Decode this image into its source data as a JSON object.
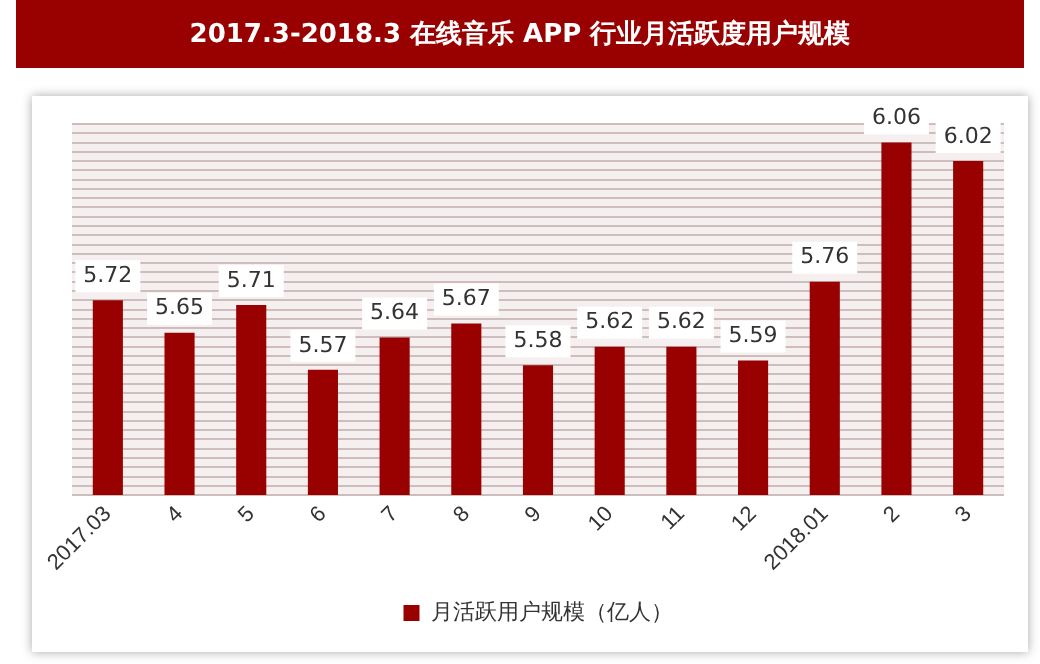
{
  "chart_data": {
    "type": "bar",
    "title": "2017.3-2018.3 在线音乐 APP 行业月活跃度用户规模",
    "categories": [
      "2017.03",
      "4",
      "5",
      "6",
      "7",
      "8",
      "9",
      "10",
      "11",
      "12",
      "2018.01",
      "2",
      "3"
    ],
    "series": [
      {
        "name": "月活跃用户规模（亿人）",
        "color": "#990000",
        "values": [
          5.72,
          5.65,
          5.71,
          5.57,
          5.64,
          5.67,
          5.58,
          5.62,
          5.62,
          5.59,
          5.76,
          6.06,
          6.02
        ]
      }
    ],
    "ylim": [
      5.3,
      6.1
    ],
    "yticks": [
      {
        "value": 5.3,
        "label": null
      },
      {
        "value": 5.32,
        "label": null
      },
      {
        "value": 5.34,
        "label": null
      },
      {
        "value": 5.36,
        "label": null
      },
      {
        "value": 5.38,
        "label": null
      },
      {
        "value": 5.4,
        "label": null
      },
      {
        "value": 5.42,
        "label": null
      },
      {
        "value": 5.44,
        "label": null
      },
      {
        "value": 5.46,
        "label": null
      },
      {
        "value": 5.48,
        "label": null
      },
      {
        "value": 5.5,
        "label": null
      },
      {
        "value": 5.52,
        "label": null
      },
      {
        "value": 5.54,
        "label": null
      },
      {
        "value": 5.56,
        "label": null
      },
      {
        "value": 5.58,
        "label": null
      },
      {
        "value": 5.6,
        "label": null
      },
      {
        "value": 5.62,
        "label": null
      },
      {
        "value": 5.64,
        "label": null
      },
      {
        "value": 5.66,
        "label": null
      },
      {
        "value": 5.68,
        "label": null
      },
      {
        "value": 5.7,
        "label": null
      },
      {
        "value": 5.72,
        "label": null
      },
      {
        "value": 5.74,
        "label": null
      },
      {
        "value": 5.76,
        "label": null
      },
      {
        "value": 5.78,
        "label": null
      },
      {
        "value": 5.8,
        "label": null
      },
      {
        "value": 5.82,
        "label": null
      },
      {
        "value": 5.84,
        "label": null
      },
      {
        "value": 5.86,
        "label": null
      },
      {
        "value": 5.88,
        "label": null
      },
      {
        "value": 5.9,
        "label": null
      },
      {
        "value": 5.92,
        "label": null
      },
      {
        "value": 5.94,
        "label": null
      },
      {
        "value": 5.96,
        "label": null
      },
      {
        "value": 5.98,
        "label": null
      },
      {
        "value": 6.0,
        "label": null
      },
      {
        "value": 6.02,
        "label": null
      },
      {
        "value": 6.04,
        "label": null
      },
      {
        "value": 6.06,
        "label": null
      },
      {
        "value": 6.08,
        "label": null
      },
      {
        "value": 6.1,
        "label": null
      }
    ],
    "tick_labels": "x",
    "grid": "y",
    "legend": "bottom",
    "data_labels": true
  }
}
